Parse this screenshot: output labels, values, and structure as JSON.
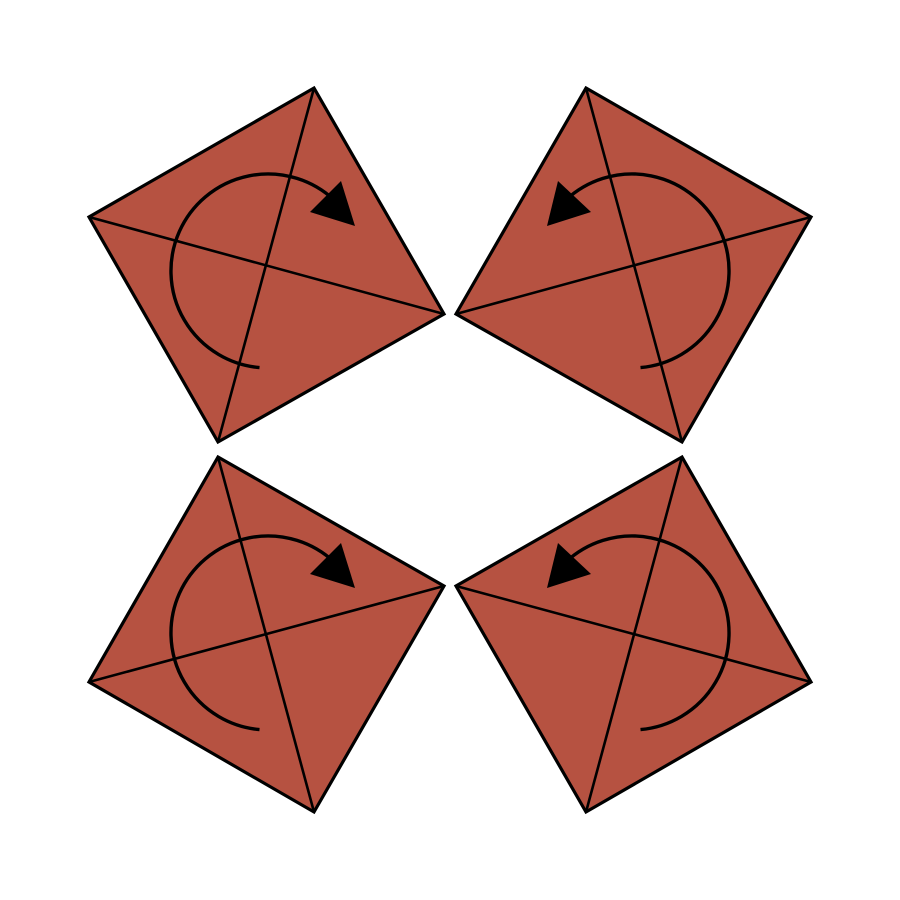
{
  "diagram": {
    "description_free": true,
    "colors": {
      "tile_fill": "#B65241",
      "outline": "#000000",
      "background": "#FFFFFF"
    },
    "tiles": [
      {
        "id": "top-left",
        "rotation_direction": "clockwise"
      },
      {
        "id": "top-right",
        "rotation_direction": "counterclockwise"
      },
      {
        "id": "bottom-left",
        "rotation_direction": "clockwise"
      },
      {
        "id": "bottom-right",
        "rotation_direction": "counterclockwise"
      }
    ]
  }
}
